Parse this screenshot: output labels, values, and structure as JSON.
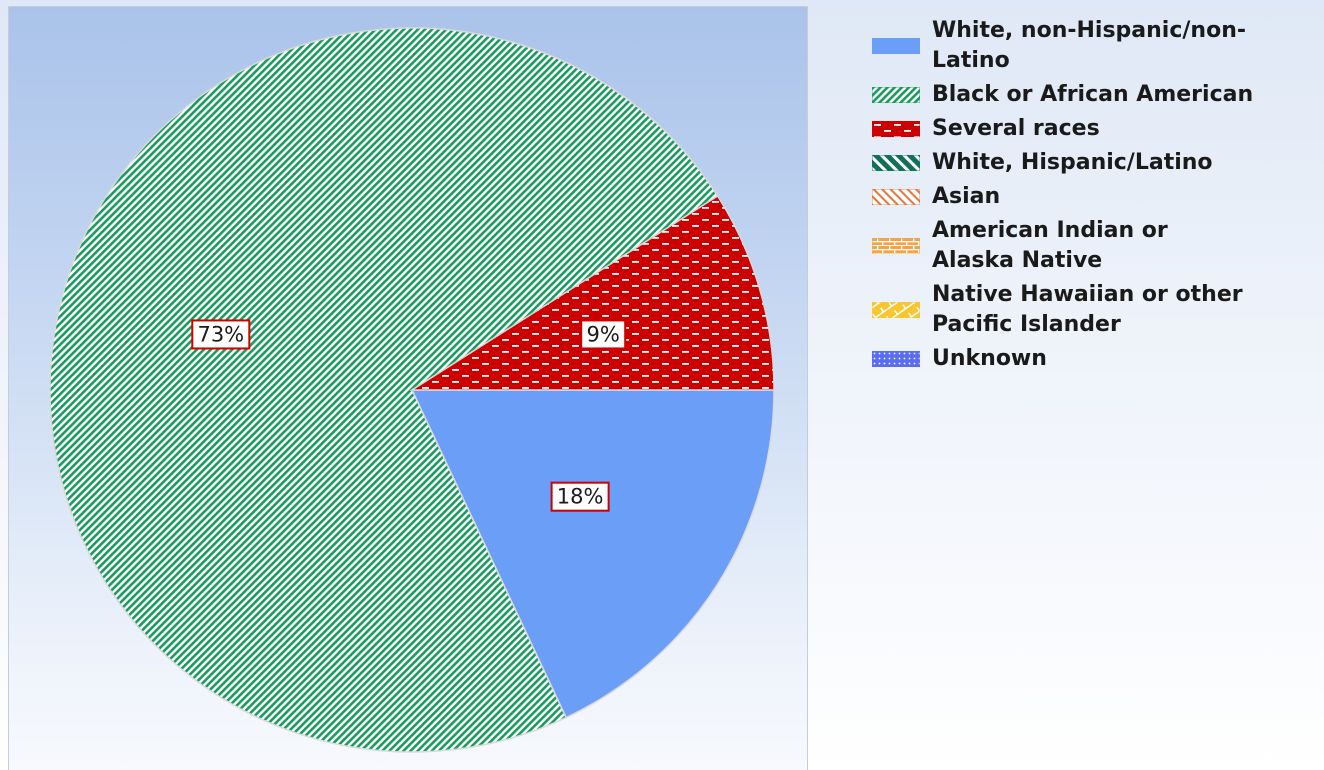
{
  "chart_data": {
    "type": "pie",
    "title": "",
    "slices": [
      {
        "name": "White, non-Hispanic/non-Latino",
        "value": 18,
        "label": "18%",
        "color": "#6b9ef7",
        "pattern": "solid"
      },
      {
        "name": "Black or African American",
        "value": 73,
        "label": "73%",
        "color": "#1a9b5e",
        "pattern": "diag-fine"
      },
      {
        "name": "Several races",
        "value": 9,
        "label": "9%",
        "color": "#cc0000",
        "pattern": "dashes"
      },
      {
        "name": "White, Hispanic/Latino",
        "value": 0,
        "label": "",
        "color": "#11705b",
        "pattern": "diag-wide"
      },
      {
        "name": "Asian",
        "value": 0,
        "label": "",
        "color": "#e8763c",
        "pattern": "diag-light"
      },
      {
        "name": "American Indian or Alaska Native",
        "value": 0,
        "label": "",
        "color": "#f5a442",
        "pattern": "brick"
      },
      {
        "name": "Native Hawaiian or other Pacific Islander",
        "value": 0,
        "label": "",
        "color": "#f7c630",
        "pattern": "weave"
      },
      {
        "name": "Unknown",
        "value": 0,
        "label": "",
        "color": "#5a6cf0",
        "pattern": "dots"
      }
    ],
    "legend": {
      "position": "right"
    },
    "label_box": {
      "fill": "#ffffff",
      "border": "#cc0000"
    }
  }
}
